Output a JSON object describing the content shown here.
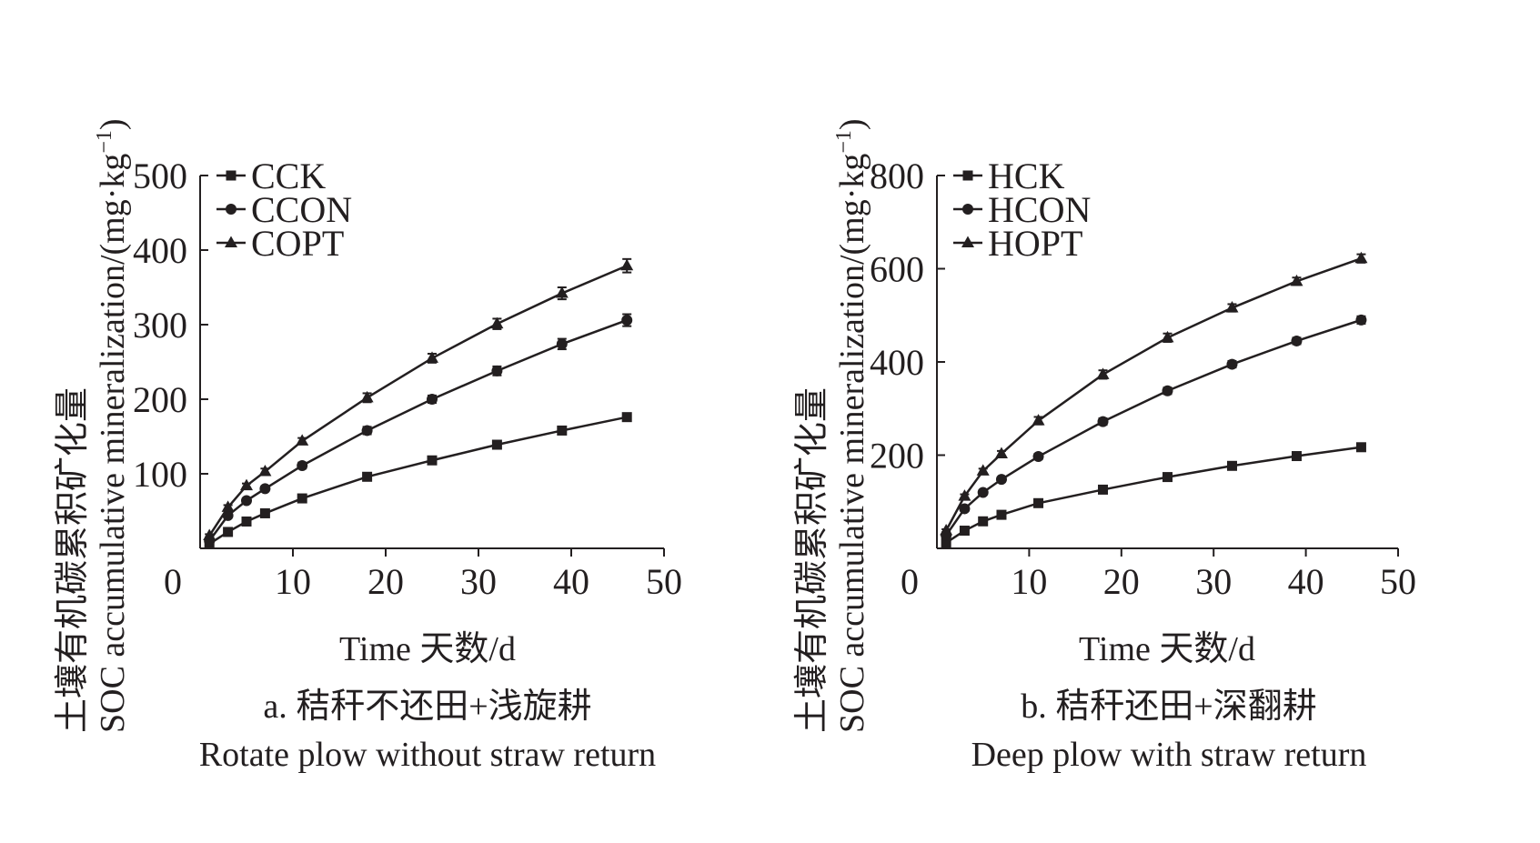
{
  "chart_data": [
    {
      "type": "line",
      "caption_cn": "a. 秸秆不还田+浅旋耕",
      "caption_en": "Rotate plow without straw return",
      "xlabel": "Time 天数/d",
      "ylabel_cn": "土壤有机碳累积矿化量",
      "ylabel_en": "SOC accumulative mineralization/(mg·kg",
      "ylabel_sup": "−1",
      "ylabel_close": ")",
      "xlim": [
        0,
        50
      ],
      "ylim": [
        0,
        500
      ],
      "xticks": [
        0,
        10,
        20,
        30,
        40,
        50
      ],
      "yticks": [
        100,
        200,
        300,
        400,
        500
      ],
      "grid": false,
      "legend_position": "top-left",
      "color": "#231f20",
      "x": [
        1,
        3,
        5,
        7,
        11,
        18,
        25,
        32,
        39,
        46
      ],
      "series": [
        {
          "name": "CCK",
          "marker": "square",
          "values": [
            6,
            22,
            36,
            47,
            67,
            96,
            118,
            139,
            158,
            176
          ],
          "errors": [
            2,
            2,
            2,
            3,
            3,
            3,
            3,
            4,
            5,
            5
          ]
        },
        {
          "name": "CCON",
          "marker": "circle",
          "values": [
            10,
            44,
            64,
            80,
            111,
            158,
            200,
            238,
            274,
            306
          ],
          "errors": [
            2,
            3,
            3,
            3,
            4,
            5,
            5,
            6,
            7,
            8
          ]
        },
        {
          "name": "COPT",
          "marker": "triangle",
          "values": [
            17,
            55,
            84,
            103,
            144,
            202,
            255,
            301,
            342,
            379
          ],
          "errors": [
            2,
            3,
            3,
            4,
            4,
            6,
            6,
            7,
            8,
            9
          ]
        }
      ]
    },
    {
      "type": "line",
      "caption_cn": "b. 秸秆还田+深翻耕",
      "caption_en": "Deep plow with straw return",
      "xlabel": "Time 天数/d",
      "ylabel_cn": "土壤有机碳累积矿化量",
      "ylabel_en": "SOC accumulative mineralization/(mg·kg",
      "ylabel_sup": "−1",
      "ylabel_close": ")",
      "xlim": [
        0,
        50
      ],
      "ylim": [
        0,
        800
      ],
      "xticks": [
        0,
        10,
        20,
        30,
        40,
        50
      ],
      "yticks": [
        200,
        400,
        600,
        800
      ],
      "grid": false,
      "legend_position": "top-left",
      "color": "#231f20",
      "x": [
        1,
        3,
        5,
        7,
        11,
        18,
        25,
        32,
        39,
        46
      ],
      "series": [
        {
          "name": "HCK",
          "marker": "square",
          "values": [
            12,
            38,
            58,
            72,
            97,
            126,
            153,
            177,
            198,
            217
          ],
          "errors": [
            2,
            3,
            3,
            3,
            4,
            4,
            5,
            5,
            5,
            6
          ]
        },
        {
          "name": "HCON",
          "marker": "circle",
          "values": [
            28,
            85,
            120,
            148,
            197,
            272,
            338,
            395,
            445,
            490
          ],
          "errors": [
            3,
            4,
            4,
            5,
            6,
            7,
            7,
            7,
            7,
            8
          ]
        },
        {
          "name": "HOPT",
          "marker": "triangle",
          "values": [
            38,
            112,
            166,
            203,
            274,
            373,
            452,
            516,
            573,
            622
          ],
          "errors": [
            3,
            4,
            5,
            6,
            8,
            9,
            9,
            8,
            8,
            9
          ]
        }
      ]
    }
  ]
}
